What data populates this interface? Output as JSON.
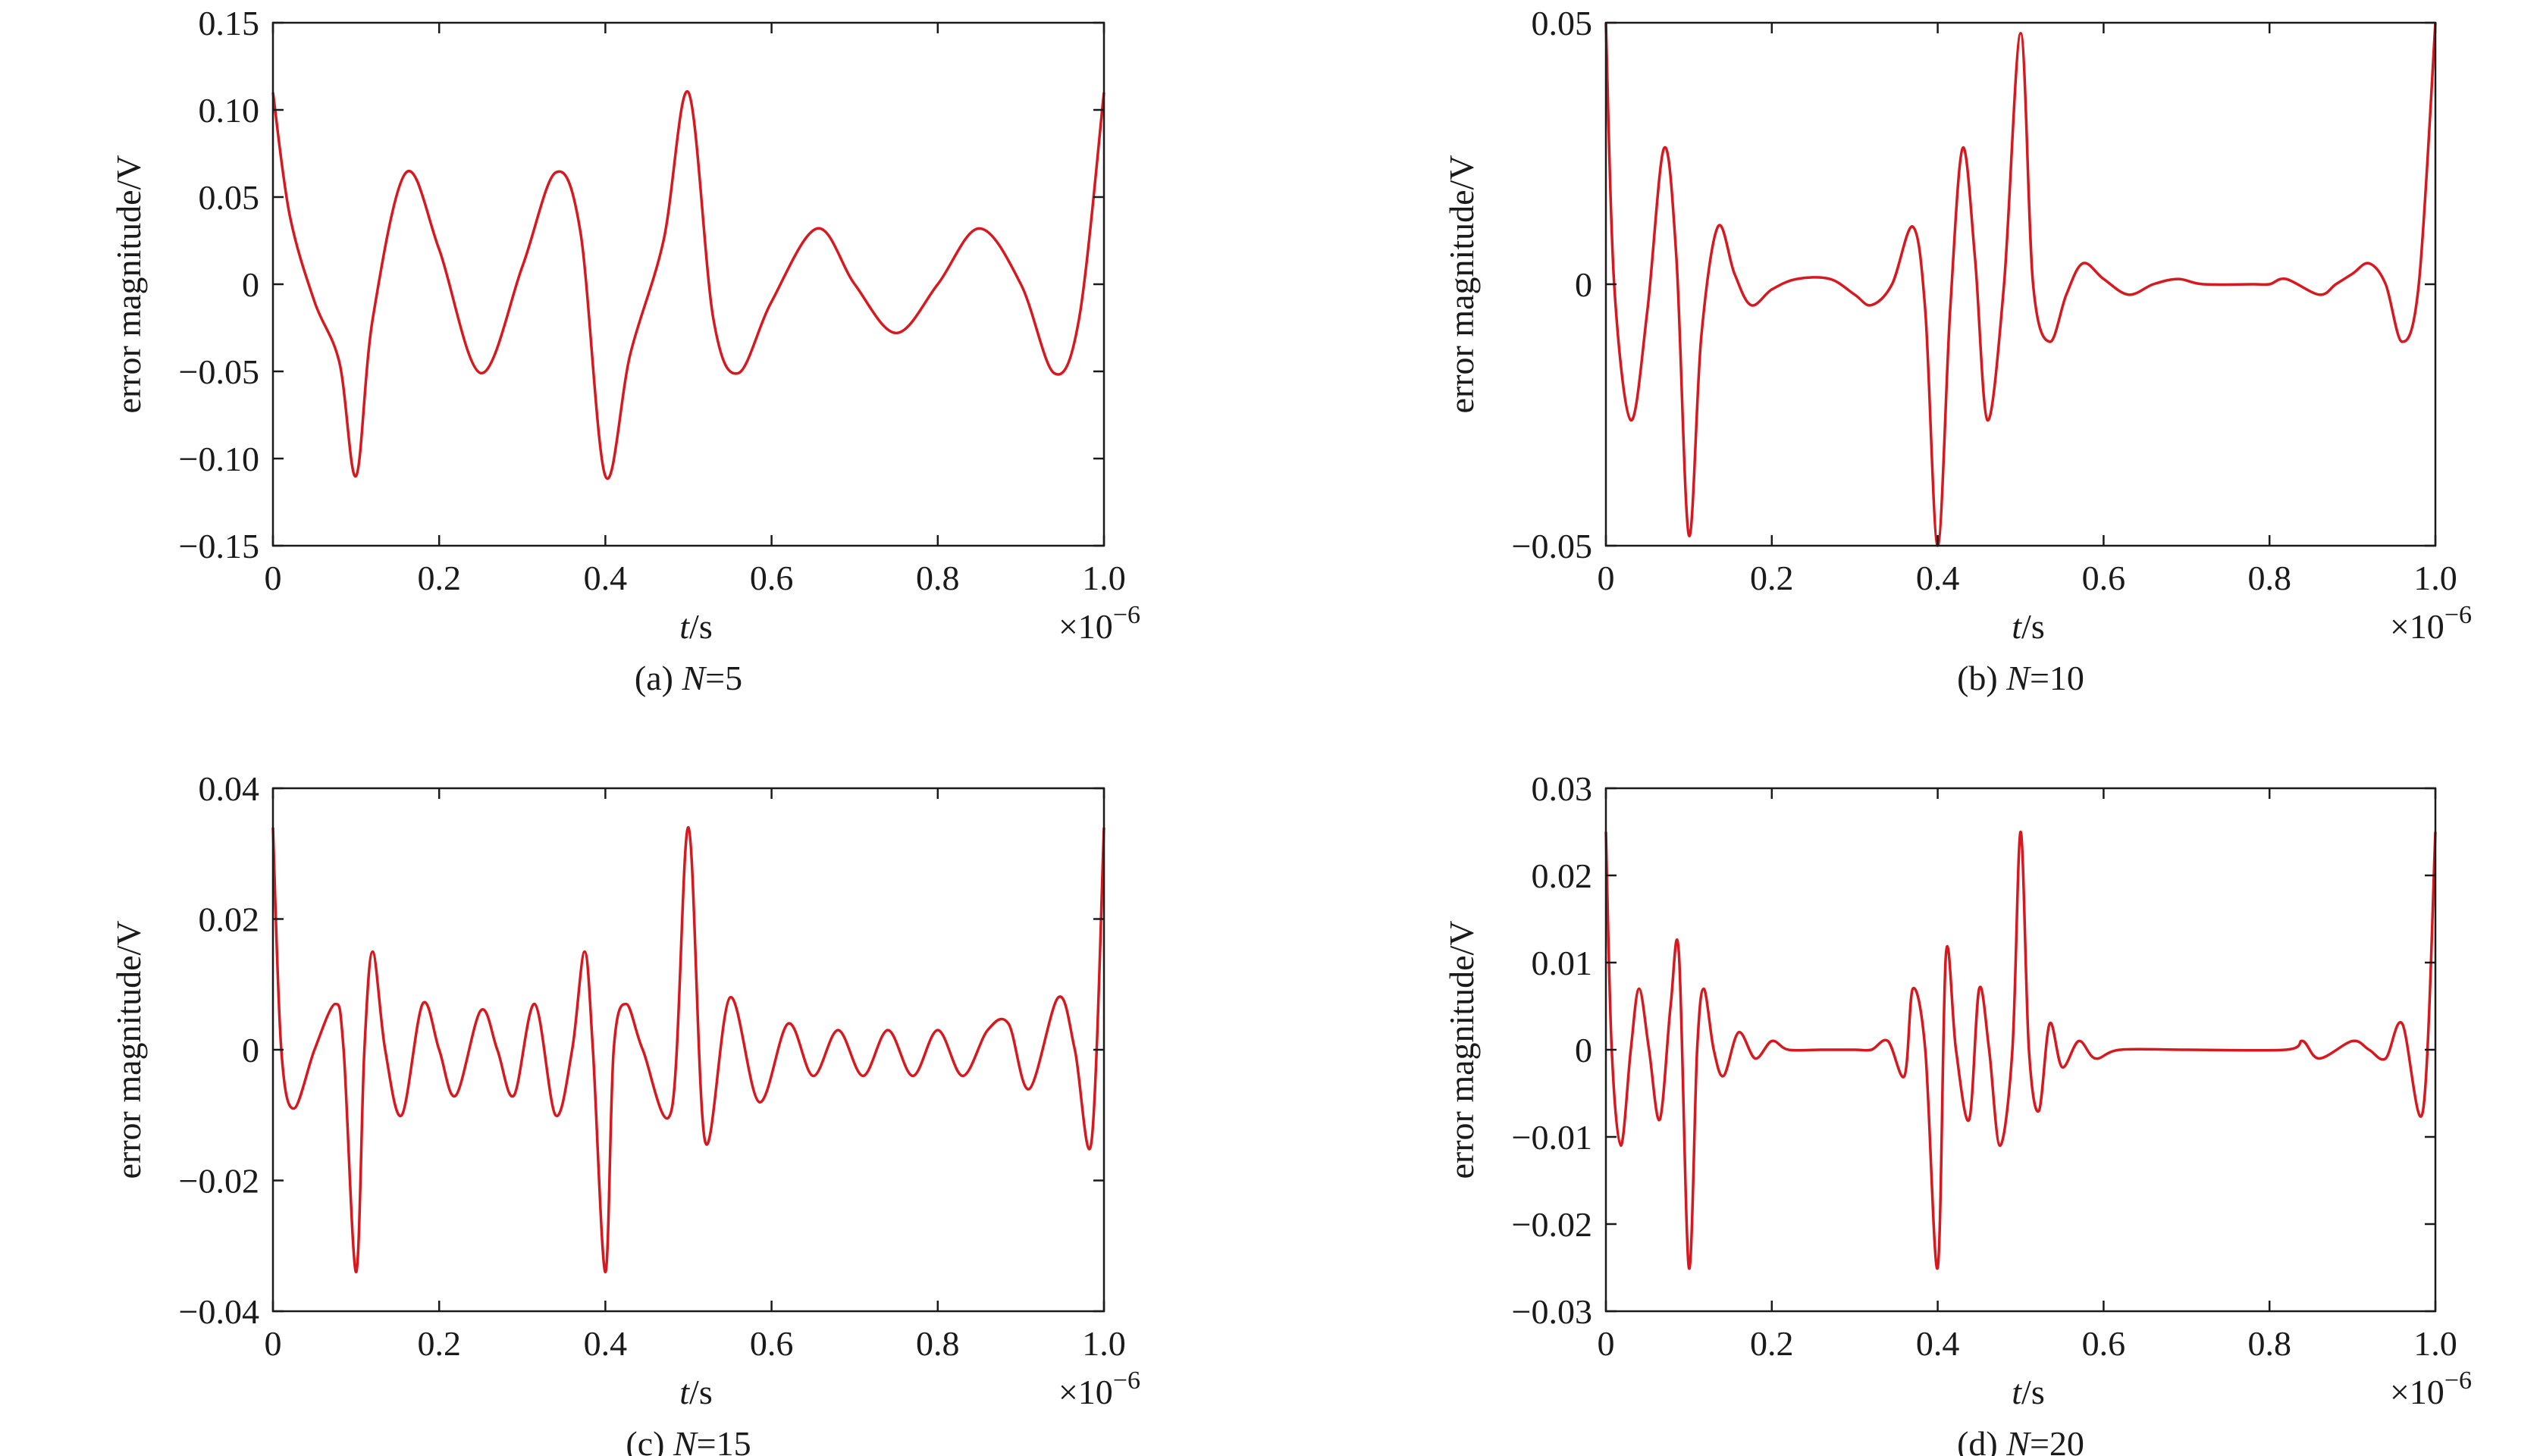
{
  "colors": {
    "line": "#d7191f",
    "axis": "#1a1a1a"
  },
  "chart_data": [
    {
      "type": "line",
      "caption_prefix": "(a) ",
      "caption_var": "N",
      "caption_suffix": "=5",
      "xlabel_var": "t",
      "xlabel_unit": "/s",
      "ylabel": "error magnitude/V",
      "x_multiplier": "×10",
      "x_exponent": "−6",
      "xlim": [
        0,
        1.0
      ],
      "ylim": [
        -0.15,
        0.15
      ],
      "x_ticks": [
        0,
        0.2,
        0.4,
        0.6,
        0.8,
        1.0
      ],
      "x_tick_labels": [
        "0",
        "0.2",
        "0.4",
        "0.6",
        "0.8",
        "1.0"
      ],
      "y_ticks": [
        -0.15,
        -0.1,
        -0.05,
        0,
        0.05,
        0.1,
        0.15
      ],
      "y_tick_labels": [
        "−0.15",
        "−0.10",
        "−0.05",
        "0",
        "0.05",
        "0.10",
        "0.15"
      ],
      "series": [
        {
          "x": [
            0,
            0.02,
            0.05,
            0.08,
            0.1,
            0.12,
            0.16,
            0.2,
            0.25,
            0.3,
            0.34,
            0.37,
            0.4,
            0.43,
            0.47,
            0.5,
            0.53,
            0.56,
            0.6,
            0.655,
            0.7,
            0.75,
            0.8,
            0.85,
            0.9,
            0.94,
            0.97,
            1.0
          ],
          "y": [
            0.11,
            0.04,
            -0.01,
            -0.045,
            -0.11,
            -0.02,
            0.064,
            0.02,
            -0.051,
            0.01,
            0.064,
            0.03,
            -0.11,
            -0.04,
            0.025,
            0.11,
            -0.02,
            -0.051,
            -0.01,
            0.032,
            0.0,
            -0.028,
            0.0,
            0.032,
            0.0,
            -0.051,
            -0.02,
            0.11
          ]
        }
      ]
    },
    {
      "type": "line",
      "caption_prefix": "(b) ",
      "caption_var": "N",
      "caption_suffix": "=10",
      "xlabel_var": "t",
      "xlabel_unit": "/s",
      "ylabel": "error magnitude/V",
      "x_multiplier": "×10",
      "x_exponent": "−6",
      "xlim": [
        0,
        1.0
      ],
      "ylim": [
        -0.05,
        0.05
      ],
      "x_ticks": [
        0,
        0.2,
        0.4,
        0.6,
        0.8,
        1.0
      ],
      "x_tick_labels": [
        "0",
        "0.2",
        "0.4",
        "0.6",
        "0.8",
        "1.0"
      ],
      "y_ticks": [
        -0.05,
        0,
        0.05
      ],
      "y_tick_labels": [
        "−0.05",
        "0",
        "0.05"
      ],
      "series": [
        {
          "x": [
            0,
            0.01,
            0.03,
            0.05,
            0.07,
            0.085,
            0.1,
            0.115,
            0.135,
            0.155,
            0.175,
            0.2,
            0.23,
            0.27,
            0.3,
            0.32,
            0.345,
            0.37,
            0.385,
            0.4,
            0.415,
            0.43,
            0.445,
            0.46,
            0.48,
            0.5,
            0.515,
            0.535,
            0.555,
            0.575,
            0.6,
            0.63,
            0.66,
            0.69,
            0.72,
            0.78,
            0.8,
            0.82,
            0.86,
            0.88,
            0.9,
            0.92,
            0.94,
            0.96,
            0.98,
            1.0
          ],
          "y": [
            0.05,
            0.0,
            -0.026,
            -0.005,
            0.026,
            0.005,
            -0.048,
            -0.01,
            0.011,
            0.002,
            -0.004,
            -0.001,
            0.001,
            0.001,
            -0.002,
            -0.004,
            0.0,
            0.011,
            -0.005,
            -0.05,
            -0.005,
            0.026,
            0.005,
            -0.026,
            0.0,
            0.048,
            0.0,
            -0.011,
            -0.002,
            0.004,
            0.001,
            -0.002,
            0.0,
            0.001,
            0.0,
            0.0,
            0.0,
            0.001,
            -0.002,
            0.0,
            0.002,
            0.004,
            0.0,
            -0.011,
            0.0,
            0.05
          ]
        }
      ]
    },
    {
      "type": "line",
      "caption_prefix": "(c) ",
      "caption_var": "N",
      "caption_suffix": "=15",
      "xlabel_var": "t",
      "xlabel_unit": "/s",
      "ylabel": "error magnitude/V",
      "x_multiplier": "×10",
      "x_exponent": "−6",
      "xlim": [
        0,
        1.0
      ],
      "ylim": [
        -0.04,
        0.04
      ],
      "x_ticks": [
        0,
        0.2,
        0.4,
        0.6,
        0.8,
        1.0
      ],
      "x_tick_labels": [
        "0",
        "0.2",
        "0.4",
        "0.6",
        "0.8",
        "1.0"
      ],
      "y_ticks": [
        -0.04,
        -0.02,
        0,
        0.02,
        0.04
      ],
      "y_tick_labels": [
        "−0.04",
        "−0.02",
        "0",
        "0.02",
        "0.04"
      ],
      "series": [
        {
          "x": [
            0,
            0.01,
            0.025,
            0.05,
            0.075,
            0.085,
            0.1,
            0.11,
            0.12,
            0.135,
            0.155,
            0.18,
            0.2,
            0.22,
            0.25,
            0.27,
            0.29,
            0.315,
            0.34,
            0.36,
            0.375,
            0.385,
            0.4,
            0.41,
            0.425,
            0.445,
            0.48,
            0.5,
            0.52,
            0.55,
            0.585,
            0.62,
            0.65,
            0.68,
            0.71,
            0.74,
            0.77,
            0.8,
            0.83,
            0.86,
            0.885,
            0.91,
            0.945,
            0.965,
            0.985,
            1.0
          ],
          "y": [
            0.034,
            0.0,
            -0.009,
            0.0,
            0.007,
            0.0,
            -0.034,
            0.0,
            0.015,
            0.0,
            -0.01,
            0.007,
            0.0,
            -0.007,
            0.006,
            0.0,
            -0.007,
            0.007,
            -0.01,
            0.0,
            0.015,
            0.0,
            -0.034,
            0.0,
            0.007,
            0.0,
            -0.009,
            0.034,
            -0.014,
            0.008,
            -0.008,
            0.004,
            -0.004,
            0.003,
            -0.004,
            0.003,
            -0.004,
            0.003,
            -0.004,
            0.003,
            0.004,
            -0.006,
            0.008,
            0.0,
            -0.014,
            0.034
          ]
        }
      ]
    },
    {
      "type": "line",
      "caption_prefix": "(d) ",
      "caption_var": "N",
      "caption_suffix": "=20",
      "xlabel_var": "t",
      "xlabel_unit": "/s",
      "ylabel": "error magnitude/V",
      "x_multiplier": "×10",
      "x_exponent": "−6",
      "xlim": [
        0,
        1.0
      ],
      "ylim": [
        -0.03,
        0.03
      ],
      "x_ticks": [
        0,
        0.2,
        0.4,
        0.6,
        0.8,
        1.0
      ],
      "x_tick_labels": [
        "0",
        "0.2",
        "0.4",
        "0.6",
        "0.8",
        "1.0"
      ],
      "y_ticks": [
        -0.03,
        -0.02,
        -0.01,
        0,
        0.01,
        0.02,
        0.03
      ],
      "y_tick_labels": [
        "−0.03",
        "−0.02",
        "−0.01",
        "0",
        "0.01",
        "0.02",
        "0.03"
      ],
      "series": [
        {
          "x": [
            0,
            0.007,
            0.018,
            0.03,
            0.04,
            0.052,
            0.065,
            0.078,
            0.088,
            0.1,
            0.11,
            0.118,
            0.13,
            0.142,
            0.16,
            0.18,
            0.2,
            0.22,
            0.26,
            0.3,
            0.32,
            0.34,
            0.36,
            0.37,
            0.385,
            0.4,
            0.41,
            0.422,
            0.438,
            0.45,
            0.462,
            0.475,
            0.49,
            0.5,
            0.51,
            0.522,
            0.535,
            0.55,
            0.57,
            0.59,
            0.62,
            0.7,
            0.82,
            0.84,
            0.86,
            0.9,
            0.92,
            0.94,
            0.96,
            0.985,
            1.0
          ],
          "y": [
            0.025,
            0.0,
            -0.011,
            0.0,
            0.007,
            0.0,
            -0.008,
            0.005,
            0.011,
            -0.025,
            0.0,
            0.007,
            0.0,
            -0.003,
            0.002,
            -0.001,
            0.001,
            0.0,
            0.0,
            0.0,
            0.0,
            0.001,
            -0.003,
            0.007,
            0.0,
            -0.025,
            0.011,
            0.0,
            -0.008,
            0.007,
            0.0,
            -0.011,
            0.0,
            0.025,
            0.0,
            -0.007,
            0.003,
            -0.002,
            0.001,
            -0.001,
            0.0,
            0.0,
            0.0,
            0.001,
            -0.001,
            0.001,
            0.0,
            -0.001,
            0.003,
            -0.007,
            0.025
          ]
        }
      ]
    }
  ]
}
